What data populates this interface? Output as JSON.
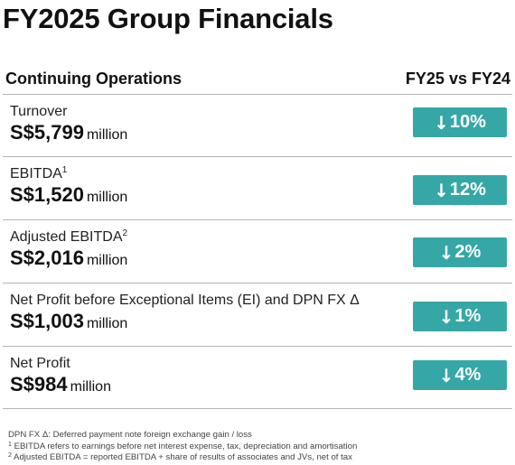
{
  "title": "FY2025 Group Financials",
  "header": {
    "left": "Continuing Operations",
    "right": "FY25 vs FY24"
  },
  "rows": [
    {
      "label": "Turnover",
      "sup": "",
      "value": "S$5,799",
      "unit": "million",
      "change": "10%",
      "direction": "down"
    },
    {
      "label": "EBITDA",
      "sup": "1",
      "value": "S$1,520",
      "unit": "million",
      "change": "12%",
      "direction": "down"
    },
    {
      "label": "Adjusted EBITDA",
      "sup": "2",
      "value": "S$2,016",
      "unit": "million",
      "change": "2%",
      "direction": "down"
    },
    {
      "label": "Net Profit before Exceptional Items (EI) and DPN FX Δ",
      "sup": "",
      "value": "S$1,003",
      "unit": "million",
      "change": "1%",
      "direction": "down"
    },
    {
      "label": "Net Profit",
      "sup": "",
      "value": "S$984",
      "unit": "million",
      "change": "4%",
      "direction": "down"
    }
  ],
  "footnotes": {
    "fx": "DPN FX Δ: Deferred payment note foreign exchange gain / loss",
    "note1_mark": "1",
    "note1": "EBITDA refers to earnings before net interest expense, tax, depreciation and amortisation",
    "note2_mark": "2",
    "note2": "Adjusted EBITDA = reported EBITDA + share of results of associates and JVs, net of tax"
  },
  "icons": {
    "down_arrow": "arrow-down-icon"
  },
  "colors": {
    "badge": "#35a7a6",
    "divider": "#b3b3b3"
  }
}
